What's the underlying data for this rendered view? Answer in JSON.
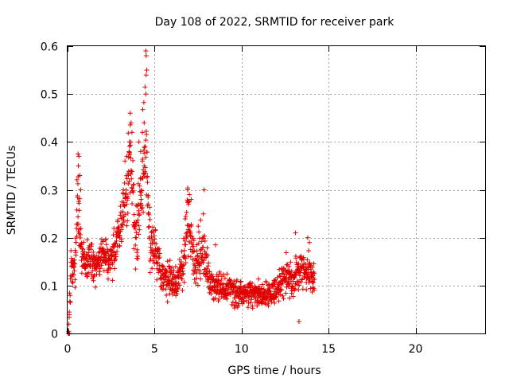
{
  "chart_data": {
    "type": "scatter",
    "title": "Day 108 of 2022, SRMTID for receiver park",
    "xlabel": "GPS time / hours",
    "ylabel": "SRMTID / TECUs",
    "xlim": [
      0,
      24
    ],
    "ylim": [
      0,
      0.6
    ],
    "xticks": [
      0,
      5,
      10,
      15,
      20
    ],
    "yticks": [
      0,
      0.1,
      0.2,
      0.3,
      0.4,
      0.5,
      0.6
    ],
    "xtick_labels": [
      "0",
      "5",
      "10",
      "15",
      "20"
    ],
    "ytick_labels": [
      "0",
      "0.1",
      "0.2",
      "0.3",
      "0.4",
      "0.5",
      "0.6"
    ],
    "grid": true,
    "marker": "+",
    "color": "#e00000",
    "series": [
      {
        "name": "SRMTID",
        "profile": [
          [
            0.05,
            0.0,
            0.01
          ],
          [
            0.2,
            0.14,
            0.05
          ],
          [
            0.4,
            0.13,
            0.04
          ],
          [
            0.6,
            0.3,
            0.08
          ],
          [
            0.8,
            0.16,
            0.04
          ],
          [
            1.0,
            0.15,
            0.04
          ],
          [
            1.3,
            0.16,
            0.04
          ],
          [
            1.6,
            0.14,
            0.04
          ],
          [
            2.0,
            0.17,
            0.04
          ],
          [
            2.4,
            0.15,
            0.04
          ],
          [
            2.8,
            0.18,
            0.05
          ],
          [
            3.1,
            0.23,
            0.05
          ],
          [
            3.4,
            0.28,
            0.08
          ],
          [
            3.6,
            0.38,
            0.08
          ],
          [
            3.9,
            0.2,
            0.06
          ],
          [
            4.2,
            0.28,
            0.1
          ],
          [
            4.5,
            0.42,
            0.12
          ],
          [
            4.7,
            0.2,
            0.06
          ],
          [
            5.0,
            0.19,
            0.05
          ],
          [
            5.4,
            0.12,
            0.04
          ],
          [
            5.8,
            0.11,
            0.04
          ],
          [
            6.2,
            0.1,
            0.04
          ],
          [
            6.6,
            0.13,
            0.05
          ],
          [
            6.9,
            0.24,
            0.07
          ],
          [
            7.3,
            0.14,
            0.04
          ],
          [
            7.8,
            0.18,
            0.07
          ],
          [
            8.2,
            0.1,
            0.03
          ],
          [
            8.8,
            0.1,
            0.03
          ],
          [
            9.5,
            0.09,
            0.03
          ],
          [
            10.2,
            0.08,
            0.025
          ],
          [
            10.8,
            0.085,
            0.025
          ],
          [
            11.5,
            0.08,
            0.025
          ],
          [
            12.0,
            0.09,
            0.03
          ],
          [
            12.5,
            0.12,
            0.04
          ],
          [
            13.0,
            0.11,
            0.04
          ],
          [
            13.4,
            0.14,
            0.04
          ],
          [
            13.8,
            0.13,
            0.04
          ],
          [
            14.2,
            0.11,
            0.04
          ]
        ],
        "points": [
          [
            0.05,
            0.0
          ],
          [
            0.08,
            0.0
          ],
          [
            0.11,
            0.0
          ],
          [
            4.5,
            0.59
          ],
          [
            4.52,
            0.58
          ],
          [
            4.55,
            0.55
          ],
          [
            4.5,
            0.5
          ],
          [
            4.4,
            0.44
          ],
          [
            4.3,
            0.42
          ],
          [
            3.6,
            0.46
          ],
          [
            3.65,
            0.44
          ],
          [
            3.7,
            0.42
          ],
          [
            3.55,
            0.4
          ],
          [
            4.1,
            0.4
          ],
          [
            4.2,
            0.38
          ],
          [
            0.6,
            0.375
          ],
          [
            0.65,
            0.37
          ],
          [
            0.62,
            0.35
          ],
          [
            0.7,
            0.33
          ],
          [
            0.75,
            0.3
          ],
          [
            3.4,
            0.37
          ],
          [
            3.3,
            0.36
          ],
          [
            3.5,
            0.33
          ],
          [
            3.2,
            0.3
          ],
          [
            4.3,
            0.36
          ],
          [
            4.4,
            0.35
          ],
          [
            6.9,
            0.3
          ],
          [
            7.0,
            0.29
          ],
          [
            7.1,
            0.28
          ],
          [
            6.95,
            0.27
          ],
          [
            7.85,
            0.3
          ],
          [
            13.1,
            0.21
          ],
          [
            13.8,
            0.2
          ],
          [
            13.9,
            0.19
          ],
          [
            8.5,
            0.185
          ],
          [
            13.3,
            0.025
          ]
        ]
      }
    ]
  }
}
